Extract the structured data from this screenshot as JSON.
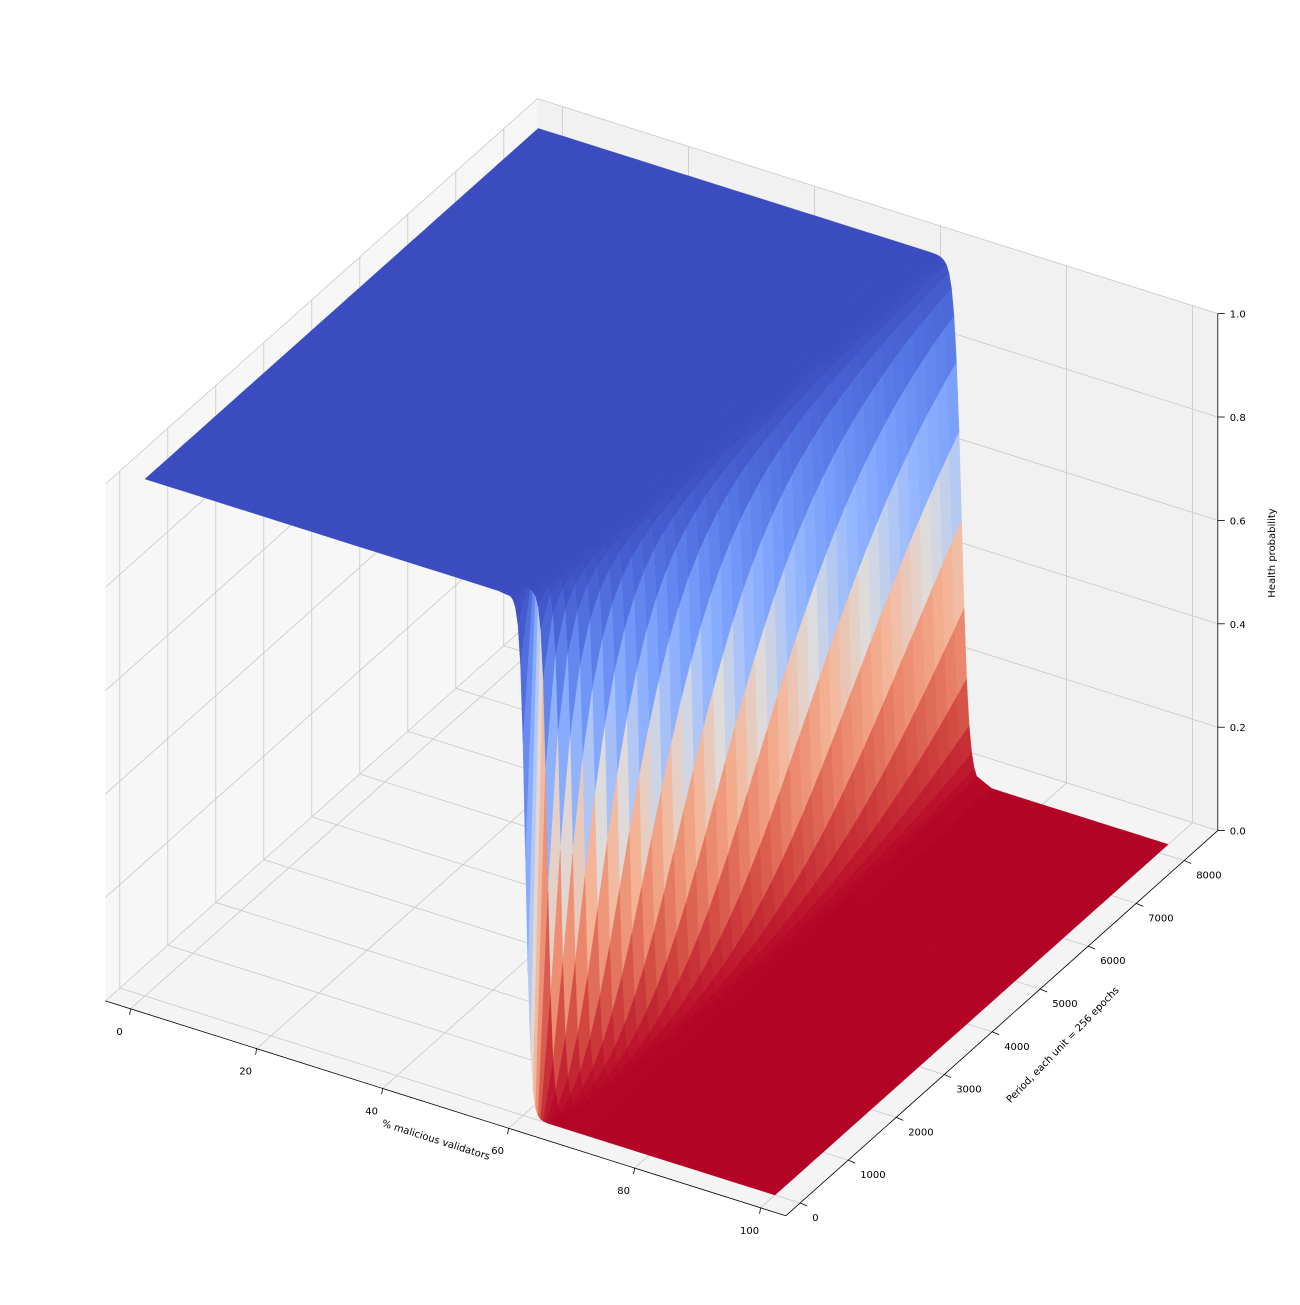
{
  "chart_data": {
    "type": "surface3d",
    "title": "",
    "xlabel": "% malicious validators",
    "ylabel": "Period, each unit = 256 epochs",
    "zlabel": "Health probability",
    "xlim": [
      -4,
      104
    ],
    "ylim": [
      -300,
      8700
    ],
    "zlim": [
      0,
      1
    ],
    "xticks": [
      0,
      20,
      40,
      60,
      80,
      100
    ],
    "yticks": [
      0,
      1000,
      2000,
      3000,
      4000,
      5000,
      6000,
      7000,
      8000
    ],
    "zticks": [
      0.0,
      0.2,
      0.4,
      0.6,
      0.8,
      1.0
    ],
    "xtick_labels": [
      "0",
      "20",
      "40",
      "60",
      "80",
      "100"
    ],
    "ytick_labels": [
      "0",
      "1000",
      "2000",
      "3000",
      "4000",
      "5000",
      "6000",
      "7000",
      "8000"
    ],
    "ztick_labels": [
      "0.0",
      "0.2",
      "0.4",
      "0.6",
      "0.8",
      "1.0"
    ],
    "colormap": "coolwarm",
    "colormap_endpoints": [
      "#3b4cc0",
      "#dddddd",
      "#b40426"
    ],
    "grid": true,
    "surface": {
      "x_range": [
        0,
        100
      ],
      "y_range": [
        0,
        8192
      ],
      "description_points": [
        {
          "x": 0,
          "y": 0,
          "z": 1.0
        },
        {
          "x": 60,
          "y": 0,
          "z": 1.0
        },
        {
          "x": 67,
          "y": 0,
          "z": 0.0
        },
        {
          "x": 100,
          "y": 0,
          "z": 0.0
        },
        {
          "x": 0,
          "y": 8192,
          "z": 1.0
        },
        {
          "x": 60,
          "y": 8192,
          "z": 1.0
        },
        {
          "x": 68,
          "y": 8192,
          "z": 0.0
        },
        {
          "x": 100,
          "y": 8192,
          "z": 0.0
        }
      ]
    }
  }
}
